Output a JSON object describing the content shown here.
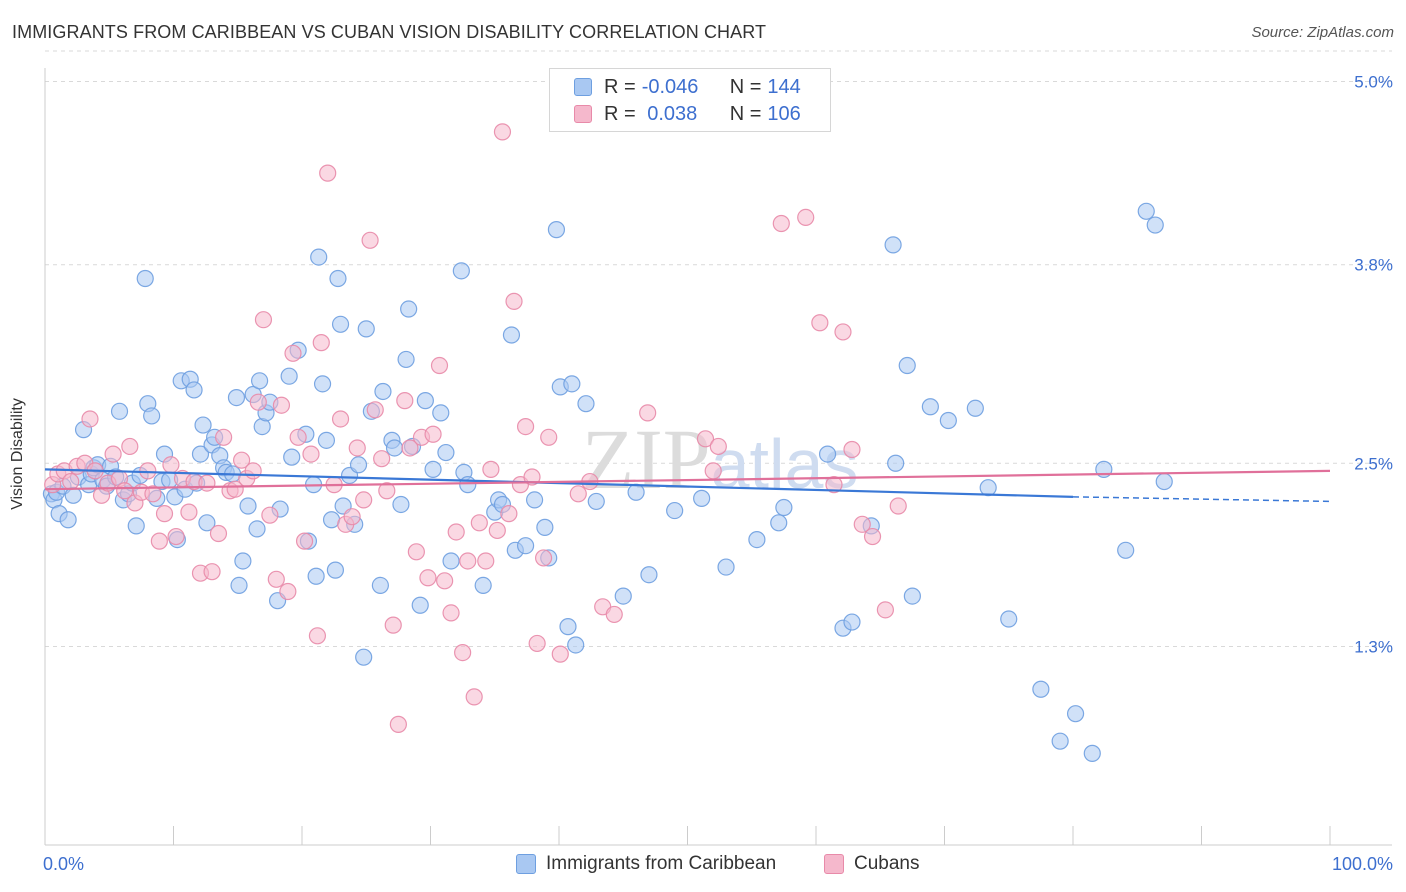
{
  "header": {
    "title": "IMMIGRANTS FROM CARIBBEAN VS CUBAN VISION DISABILITY CORRELATION CHART",
    "source": "Source: ZipAtlas.com"
  },
  "watermark": "ZIPatlas",
  "legend": {
    "rows": [
      {
        "r_label": "R =",
        "r_value": "-0.046",
        "n_label": "N =",
        "n_value": "144"
      },
      {
        "r_label": "R =",
        "r_value": " 0.038",
        "n_label": "N =",
        "n_value": "106"
      }
    ]
  },
  "bottom_legend": {
    "series_a": "Immigrants from Caribbean",
    "series_b": "Cubans"
  },
  "colors": {
    "blue_fill": "#a9c8f2",
    "blue_stroke": "#6e9fe0",
    "blue_line": "#3a78d6",
    "pink_fill": "#f5b8cc",
    "pink_stroke": "#e88aa9",
    "pink_line": "#e0709a",
    "axis_text": "#3d6fcf",
    "grid": "#d9d9d9"
  },
  "chart_data": {
    "type": "scatter",
    "title": "IMMIGRANTS FROM CARIBBEAN VS CUBAN VISION DISABILITY CORRELATION CHART",
    "xlabel": "",
    "ylabel": "Vision Disability",
    "xlim": [
      0,
      100
    ],
    "ylim": [
      0,
      5.2
    ],
    "x_tick_labels": [
      "0.0%",
      "100.0%"
    ],
    "y_ticks": [
      1.3,
      2.5,
      3.8,
      5.0
    ],
    "y_tick_labels": [
      "1.3%",
      "2.5%",
      "3.8%",
      "5.0%"
    ],
    "grid": true,
    "legend_placement": "top-center",
    "series": [
      {
        "name": "Immigrants from Caribbean",
        "r": -0.046,
        "n": 144,
        "trend": {
          "x": [
            0,
            80,
            100
          ],
          "y": [
            2.46,
            2.28,
            2.25
          ],
          "dashed_from_x": 80
        },
        "points": [
          [
            0.5,
            2.3
          ],
          [
            0.7,
            2.26
          ],
          [
            0.9,
            2.31
          ],
          [
            1.1,
            2.17
          ],
          [
            1.4,
            2.35
          ],
          [
            1.8,
            2.13
          ],
          [
            2.2,
            2.29
          ],
          [
            2.6,
            2.41
          ],
          [
            3.0,
            2.72
          ],
          [
            3.4,
            2.36
          ],
          [
            3.6,
            2.43
          ],
          [
            3.8,
            2.47
          ],
          [
            4.1,
            2.49
          ],
          [
            4.5,
            2.39
          ],
          [
            4.8,
            2.35
          ],
          [
            5.1,
            2.48
          ],
          [
            5.5,
            2.41
          ],
          [
            5.8,
            2.84
          ],
          [
            6.1,
            2.26
          ],
          [
            6.5,
            2.3
          ],
          [
            6.8,
            2.37
          ],
          [
            7.1,
            2.09
          ],
          [
            7.4,
            2.42
          ],
          [
            7.8,
            3.71
          ],
          [
            8.0,
            2.89
          ],
          [
            8.3,
            2.81
          ],
          [
            8.7,
            2.27
          ],
          [
            9.1,
            2.38
          ],
          [
            9.3,
            2.56
          ],
          [
            9.7,
            2.39
          ],
          [
            10.1,
            2.28
          ],
          [
            10.3,
            2.0
          ],
          [
            10.6,
            3.04
          ],
          [
            10.9,
            2.33
          ],
          [
            11.3,
            3.05
          ],
          [
            11.6,
            2.98
          ],
          [
            11.8,
            2.37
          ],
          [
            12.1,
            2.56
          ],
          [
            12.3,
            2.75
          ],
          [
            12.6,
            2.11
          ],
          [
            13.0,
            2.62
          ],
          [
            13.2,
            2.67
          ],
          [
            13.6,
            2.55
          ],
          [
            13.9,
            2.47
          ],
          [
            14.1,
            2.44
          ],
          [
            14.6,
            2.43
          ],
          [
            14.9,
            2.93
          ],
          [
            15.1,
            1.7
          ],
          [
            15.4,
            1.86
          ],
          [
            15.8,
            2.22
          ],
          [
            16.2,
            2.95
          ],
          [
            16.5,
            2.07
          ],
          [
            16.7,
            3.04
          ],
          [
            16.9,
            2.74
          ],
          [
            17.2,
            2.83
          ],
          [
            17.5,
            2.9
          ],
          [
            18.1,
            1.6
          ],
          [
            18.3,
            2.2
          ],
          [
            19.0,
            3.07
          ],
          [
            19.2,
            2.54
          ],
          [
            19.7,
            3.24
          ],
          [
            20.3,
            2.69
          ],
          [
            20.5,
            1.99
          ],
          [
            20.9,
            2.36
          ],
          [
            21.1,
            1.76
          ],
          [
            21.3,
            3.85
          ],
          [
            21.6,
            3.02
          ],
          [
            21.9,
            2.65
          ],
          [
            22.3,
            2.13
          ],
          [
            22.6,
            1.8
          ],
          [
            22.8,
            3.71
          ],
          [
            23.0,
            3.41
          ],
          [
            23.2,
            2.22
          ],
          [
            23.7,
            2.42
          ],
          [
            24.1,
            2.1
          ],
          [
            24.4,
            2.49
          ],
          [
            24.8,
            1.23
          ],
          [
            25.0,
            3.38
          ],
          [
            25.4,
            2.84
          ],
          [
            26.1,
            1.7
          ],
          [
            26.3,
            2.97
          ],
          [
            27.0,
            2.65
          ],
          [
            27.2,
            2.6
          ],
          [
            27.7,
            2.23
          ],
          [
            28.1,
            3.18
          ],
          [
            28.3,
            3.51
          ],
          [
            28.6,
            2.61
          ],
          [
            29.2,
            1.57
          ],
          [
            29.6,
            2.91
          ],
          [
            30.2,
            2.46
          ],
          [
            30.8,
            2.83
          ],
          [
            31.2,
            2.57
          ],
          [
            31.6,
            1.86
          ],
          [
            32.4,
            3.76
          ],
          [
            32.6,
            2.44
          ],
          [
            32.9,
            2.36
          ],
          [
            34.1,
            1.7
          ],
          [
            35.0,
            2.18
          ],
          [
            35.3,
            2.26
          ],
          [
            35.6,
            2.23
          ],
          [
            36.3,
            3.34
          ],
          [
            36.6,
            1.93
          ],
          [
            37.4,
            1.96
          ],
          [
            38.1,
            2.26
          ],
          [
            38.9,
            2.08
          ],
          [
            39.2,
            1.88
          ],
          [
            39.8,
            4.03
          ],
          [
            40.1,
            3.0
          ],
          [
            40.7,
            1.43
          ],
          [
            41.0,
            3.02
          ],
          [
            41.3,
            1.31
          ],
          [
            42.1,
            2.89
          ],
          [
            42.9,
            2.25
          ],
          [
            45.0,
            1.63
          ],
          [
            46.0,
            2.31
          ],
          [
            47.0,
            1.77
          ],
          [
            49.0,
            2.19
          ],
          [
            51.1,
            2.27
          ],
          [
            53.0,
            1.82
          ],
          [
            55.4,
            2.0
          ],
          [
            57.1,
            2.11
          ],
          [
            57.5,
            2.21
          ],
          [
            60.9,
            2.56
          ],
          [
            62.1,
            1.42
          ],
          [
            62.8,
            1.46
          ],
          [
            64.3,
            2.09
          ],
          [
            66.0,
            3.93
          ],
          [
            66.2,
            2.5
          ],
          [
            67.1,
            3.14
          ],
          [
            67.5,
            1.63
          ],
          [
            68.9,
            2.87
          ],
          [
            70.3,
            2.78
          ],
          [
            72.4,
            2.86
          ],
          [
            73.4,
            2.34
          ],
          [
            75.0,
            1.48
          ],
          [
            77.5,
            1.02
          ],
          [
            79.0,
            0.68
          ],
          [
            80.2,
            0.86
          ],
          [
            81.5,
            0.6
          ],
          [
            82.4,
            2.46
          ],
          [
            84.1,
            1.93
          ],
          [
            85.7,
            4.15
          ],
          [
            86.4,
            4.06
          ],
          [
            87.1,
            2.38
          ]
        ]
      },
      {
        "name": "Cubans",
        "r": 0.038,
        "n": 106,
        "trend": {
          "x": [
            0,
            100
          ],
          "y": [
            2.33,
            2.45
          ]
        },
        "points": [
          [
            0.6,
            2.36
          ],
          [
            1.0,
            2.43
          ],
          [
            1.5,
            2.45
          ],
          [
            2.0,
            2.38
          ],
          [
            2.5,
            2.48
          ],
          [
            3.1,
            2.5
          ],
          [
            3.5,
            2.79
          ],
          [
            3.9,
            2.45
          ],
          [
            4.4,
            2.29
          ],
          [
            4.9,
            2.37
          ],
          [
            5.3,
            2.56
          ],
          [
            5.8,
            2.4
          ],
          [
            6.2,
            2.32
          ],
          [
            6.6,
            2.61
          ],
          [
            7.0,
            2.24
          ],
          [
            7.5,
            2.31
          ],
          [
            8.0,
            2.45
          ],
          [
            8.4,
            2.3
          ],
          [
            8.9,
            1.99
          ],
          [
            9.3,
            2.17
          ],
          [
            9.8,
            2.49
          ],
          [
            10.2,
            2.02
          ],
          [
            10.7,
            2.4
          ],
          [
            11.2,
            2.18
          ],
          [
            11.6,
            2.38
          ],
          [
            12.1,
            1.78
          ],
          [
            12.6,
            2.37
          ],
          [
            13.0,
            1.79
          ],
          [
            13.5,
            2.04
          ],
          [
            13.9,
            2.67
          ],
          [
            14.4,
            2.32
          ],
          [
            14.8,
            2.33
          ],
          [
            15.3,
            2.52
          ],
          [
            15.7,
            2.4
          ],
          [
            16.2,
            2.45
          ],
          [
            16.6,
            2.9
          ],
          [
            17.0,
            3.44
          ],
          [
            17.5,
            2.16
          ],
          [
            18.0,
            1.74
          ],
          [
            18.4,
            2.88
          ],
          [
            18.9,
            1.66
          ],
          [
            19.3,
            3.22
          ],
          [
            19.7,
            2.67
          ],
          [
            20.2,
            1.99
          ],
          [
            20.7,
            2.56
          ],
          [
            21.2,
            1.37
          ],
          [
            21.5,
            3.29
          ],
          [
            22.0,
            4.4
          ],
          [
            22.5,
            2.36
          ],
          [
            23.0,
            2.79
          ],
          [
            23.4,
            2.1
          ],
          [
            23.9,
            2.15
          ],
          [
            24.3,
            2.6
          ],
          [
            24.8,
            2.26
          ],
          [
            25.3,
            3.96
          ],
          [
            25.7,
            2.85
          ],
          [
            26.2,
            2.53
          ],
          [
            26.6,
            2.32
          ],
          [
            27.1,
            1.44
          ],
          [
            27.5,
            0.79
          ],
          [
            28.0,
            2.91
          ],
          [
            28.4,
            2.6
          ],
          [
            28.9,
            1.92
          ],
          [
            29.3,
            2.67
          ],
          [
            29.8,
            1.75
          ],
          [
            30.2,
            2.69
          ],
          [
            30.7,
            3.14
          ],
          [
            31.1,
            1.73
          ],
          [
            31.6,
            1.52
          ],
          [
            32.0,
            2.05
          ],
          [
            32.5,
            1.26
          ],
          [
            32.9,
            1.86
          ],
          [
            33.4,
            0.97
          ],
          [
            33.8,
            2.11
          ],
          [
            34.3,
            1.86
          ],
          [
            34.7,
            2.46
          ],
          [
            35.2,
            2.06
          ],
          [
            35.6,
            4.67
          ],
          [
            36.1,
            2.17
          ],
          [
            36.5,
            3.56
          ],
          [
            37.0,
            2.36
          ],
          [
            37.4,
            2.74
          ],
          [
            37.9,
            2.41
          ],
          [
            38.3,
            1.32
          ],
          [
            38.8,
            1.88
          ],
          [
            39.2,
            2.67
          ],
          [
            40.1,
            1.25
          ],
          [
            41.5,
            2.3
          ],
          [
            42.4,
            2.38
          ],
          [
            43.4,
            1.56
          ],
          [
            44.3,
            1.51
          ],
          [
            46.9,
            2.83
          ],
          [
            51.4,
            2.66
          ],
          [
            52.0,
            2.45
          ],
          [
            52.4,
            2.61
          ],
          [
            53.5,
            4.97
          ],
          [
            57.3,
            4.07
          ],
          [
            59.2,
            4.11
          ],
          [
            60.3,
            3.42
          ],
          [
            61.4,
            2.36
          ],
          [
            62.1,
            3.36
          ],
          [
            62.8,
            2.59
          ],
          [
            63.6,
            2.1
          ],
          [
            64.4,
            2.02
          ],
          [
            65.4,
            1.54
          ],
          [
            66.4,
            2.22
          ]
        ]
      }
    ]
  }
}
